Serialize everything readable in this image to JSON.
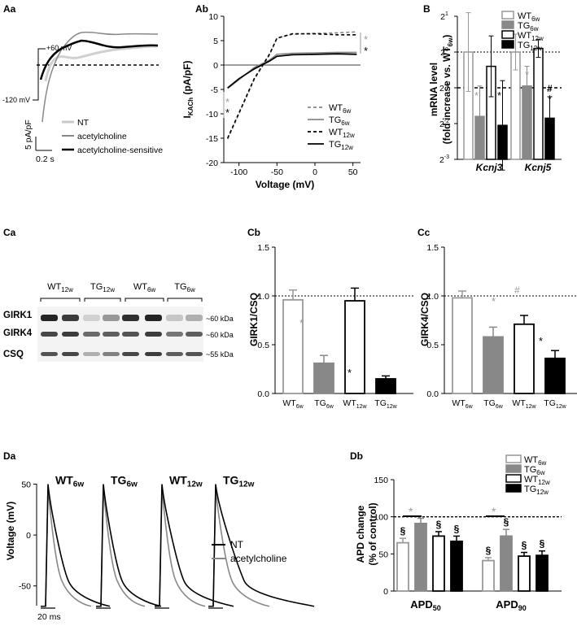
{
  "panels": {
    "Aa": "Aa",
    "Ab": "Ab",
    "B": "B",
    "Ca": "Ca",
    "Cb": "Cb",
    "Cc": "Cc",
    "Da": "Da",
    "Db": "Db"
  },
  "aa": {
    "plus60": "+60 mV",
    "minus120": "-120 mV",
    "legend": [
      "NT",
      "acetylcholine",
      "acetylcholine-sensitive"
    ],
    "scale_y": "5 pA/pF",
    "scale_x": "0.2 s"
  },
  "ab": {
    "legend": [
      {
        "base": "WT",
        "sub": "6w"
      },
      {
        "base": "TG",
        "sub": "6w"
      },
      {
        "base": "WT",
        "sub": "12w"
      },
      {
        "base": "TG",
        "sub": "12w"
      }
    ],
    "sig": [
      "*",
      "*",
      "*",
      "*"
    ]
  },
  "b": {
    "legend": [
      {
        "base": "WT",
        "sub": "6w"
      },
      {
        "base": "TG",
        "sub": "6w"
      },
      {
        "base": "WT",
        "sub": "12w"
      },
      {
        "base": "TG",
        "sub": "12w"
      }
    ],
    "ylabel1": "mRNA level",
    "ylabel2a": "(fold increase vs. WT",
    "ylabel2sub": "6w",
    "ylabel2b": ")",
    "ytick_base": "2",
    "ytick_exp": [
      "1",
      "0",
      "-1",
      "-2",
      "-3"
    ],
    "genes": [
      "Kcnj3",
      "Kcnj5"
    ],
    "sig": [
      "*",
      "*",
      "*",
      "*",
      "#",
      "*"
    ]
  },
  "ca": {
    "groups": [
      {
        "base": "WT",
        "sub": "12w"
      },
      {
        "base": "TG",
        "sub": "12w"
      },
      {
        "base": "WT",
        "sub": "6w"
      },
      {
        "base": "TG",
        "sub": "6w"
      }
    ],
    "proteins": [
      "GIRK1",
      "GIRK4",
      "CSQ"
    ],
    "sizes": [
      "~60 kDa",
      "~60 kDa",
      "~55 kDa"
    ]
  },
  "cb": {
    "ylabel": "GIRK1/CSQ",
    "sig": [
      "*",
      "*"
    ],
    "xl": [
      {
        "base": "WT",
        "sub": "6w"
      },
      {
        "base": "TG",
        "sub": "6w"
      },
      {
        "base": "WT",
        "sub": "12w"
      },
      {
        "base": "TG",
        "sub": "12w"
      }
    ]
  },
  "cc": {
    "ylabel": "GIRK4/CSQ",
    "sig": [
      "*",
      "#",
      "*"
    ],
    "xl": [
      {
        "base": "WT",
        "sub": "6w"
      },
      {
        "base": "TG",
        "sub": "6w"
      },
      {
        "base": "WT",
        "sub": "12w"
      },
      {
        "base": "TG",
        "sub": "12w"
      }
    ]
  },
  "da": {
    "ylabel": "Voltage (mV)",
    "groups": [
      {
        "base": "WT",
        "sub": "6w"
      },
      {
        "base": "TG",
        "sub": "6w"
      },
      {
        "base": "WT",
        "sub": "12w"
      },
      {
        "base": "TG",
        "sub": "12w"
      }
    ],
    "legend": [
      "NT",
      "acetylcholine"
    ],
    "scale": "20 ms"
  },
  "db": {
    "legend": [
      {
        "base": "WT",
        "sub": "6w"
      },
      {
        "base": "TG",
        "sub": "6w"
      },
      {
        "base": "WT",
        "sub": "12w"
      },
      {
        "base": "TG",
        "sub": "12w"
      }
    ],
    "ylabel1": "APD change",
    "ylabel2": "(% of control)",
    "groups": [
      {
        "base": "APD",
        "sub": "50"
      },
      {
        "base": "APD",
        "sub": "90"
      }
    ],
    "sig": [
      "*",
      "*",
      "§",
      "§",
      "§",
      "§",
      "§",
      "§",
      "§"
    ]
  },
  "chart_data": [
    {
      "type": "line",
      "panel": "Ab",
      "xlabel": "Voltage (mV)",
      "ylabel": "I_KACh (pA/pF)",
      "xlim": [
        -120,
        60
      ],
      "ylim": [
        -20,
        10
      ],
      "xticks": [
        -100,
        -50,
        0,
        50
      ],
      "yticks": [
        -20,
        -15,
        -10,
        -5,
        0,
        5,
        10
      ],
      "series": [
        {
          "name": "WT6w",
          "x": [
            -115,
            -100,
            -80,
            -60,
            -50,
            -30,
            0,
            30,
            55
          ],
          "y": [
            -15.2,
            -10,
            -3,
            2,
            5.5,
            6.3,
            6.5,
            6.6,
            6.8
          ]
        },
        {
          "name": "TG6w",
          "x": [
            -115,
            -100,
            -80,
            -60,
            -50,
            -30,
            0,
            30,
            55
          ],
          "y": [
            -4.8,
            -3,
            -0.5,
            1,
            2.2,
            2.4,
            2.5,
            2.6,
            2.6
          ]
        },
        {
          "name": "WT12w",
          "x": [
            -115,
            -100,
            -80,
            -60,
            -50,
            -30,
            0,
            30,
            55
          ],
          "y": [
            -15,
            -9.8,
            -2.8,
            2.2,
            5.5,
            6.4,
            6.4,
            6.2,
            6.2
          ]
        },
        {
          "name": "TG12w",
          "x": [
            -115,
            -100,
            -80,
            -60,
            -50,
            -30,
            0,
            30,
            55
          ],
          "y": [
            -4.7,
            -2.8,
            -0.8,
            0.8,
            1.8,
            2.1,
            2.2,
            2.3,
            2.2
          ]
        }
      ]
    },
    {
      "type": "bar",
      "panel": "B",
      "categories": [
        "Kcnj3",
        "Kcnj5"
      ],
      "ylabel": "mRNA level (fold increase vs. WT6w)",
      "log2_ylim": [
        -3,
        1
      ],
      "series": [
        {
          "name": "WT6w",
          "values": [
            0.0,
            0.0
          ],
          "err": [
            1.1,
            0.5
          ]
        },
        {
          "name": "TG6w",
          "values": [
            -1.8,
            -0.95
          ],
          "err": [
            0.85,
            0.55
          ]
        },
        {
          "name": "WT12w",
          "values": [
            -0.4,
            0.1
          ],
          "err": [
            0.85,
            0.25
          ]
        },
        {
          "name": "TG12w",
          "values": [
            -2.05,
            -1.85
          ],
          "err": [
            1.25,
            0.6
          ]
        }
      ]
    },
    {
      "type": "bar",
      "panel": "Cb",
      "categories": [
        "WT6w",
        "TG6w",
        "WT12w",
        "TG12w"
      ],
      "values": [
        0.96,
        0.31,
        0.95,
        0.15
      ],
      "err": [
        0.1,
        0.08,
        0.13,
        0.03
      ],
      "ylabel": "GIRK1/CSQ",
      "ylim": [
        0,
        1.5
      ],
      "yticks": [
        0,
        0.5,
        1.0,
        1.5
      ],
      "reference": 1.0
    },
    {
      "type": "bar",
      "panel": "Cc",
      "categories": [
        "WT6w",
        "TG6w",
        "WT12w",
        "TG12w"
      ],
      "values": [
        0.98,
        0.58,
        0.71,
        0.36
      ],
      "err": [
        0.07,
        0.1,
        0.09,
        0.08
      ],
      "ylabel": "GIRK4/CSQ",
      "ylim": [
        0,
        1.5
      ],
      "yticks": [
        0,
        0.5,
        1.0,
        1.5
      ],
      "reference": 1.0
    },
    {
      "type": "line",
      "panel": "Da",
      "ylabel": "Voltage (mV)",
      "ylim": [
        -75,
        60
      ],
      "yticks": [
        -50,
        0,
        50
      ]
    },
    {
      "type": "bar",
      "panel": "Db",
      "categories": [
        "APD50",
        "APD90"
      ],
      "ylabel": "APD change (% of control)",
      "ylim": [
        0,
        150
      ],
      "yticks": [
        0,
        50,
        100,
        150
      ],
      "reference": 100,
      "series": [
        {
          "name": "WT6w",
          "values": [
            65,
            41
          ],
          "err": [
            6,
            4
          ]
        },
        {
          "name": "TG6w",
          "values": [
            91,
            74
          ],
          "err": [
            7,
            9
          ]
        },
        {
          "name": "WT12w",
          "values": [
            74,
            47
          ],
          "err": [
            6,
            5
          ]
        },
        {
          "name": "TG12w",
          "values": [
            67,
            48
          ],
          "err": [
            7,
            6
          ]
        }
      ]
    }
  ]
}
